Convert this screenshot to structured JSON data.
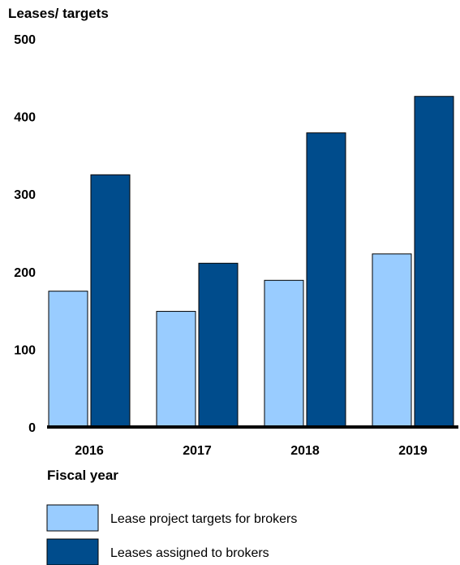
{
  "chart_data": {
    "type": "bar",
    "ylabel": "Leases/ targets",
    "xlabel": "Fiscal year",
    "ylim": [
      0,
      500
    ],
    "yticks": [
      0,
      100,
      200,
      300,
      400,
      500
    ],
    "categories": [
      "2016",
      "2017",
      "2018",
      "2019"
    ],
    "series": [
      {
        "name": "Lease project targets for brokers",
        "color": "#99ccff",
        "values": [
          175,
          149,
          189,
          223
        ]
      },
      {
        "name": "Leases assigned to brokers",
        "color": "#004c8c",
        "values": [
          325,
          211,
          379,
          426
        ]
      }
    ],
    "legend": "bottom",
    "grid": false
  }
}
